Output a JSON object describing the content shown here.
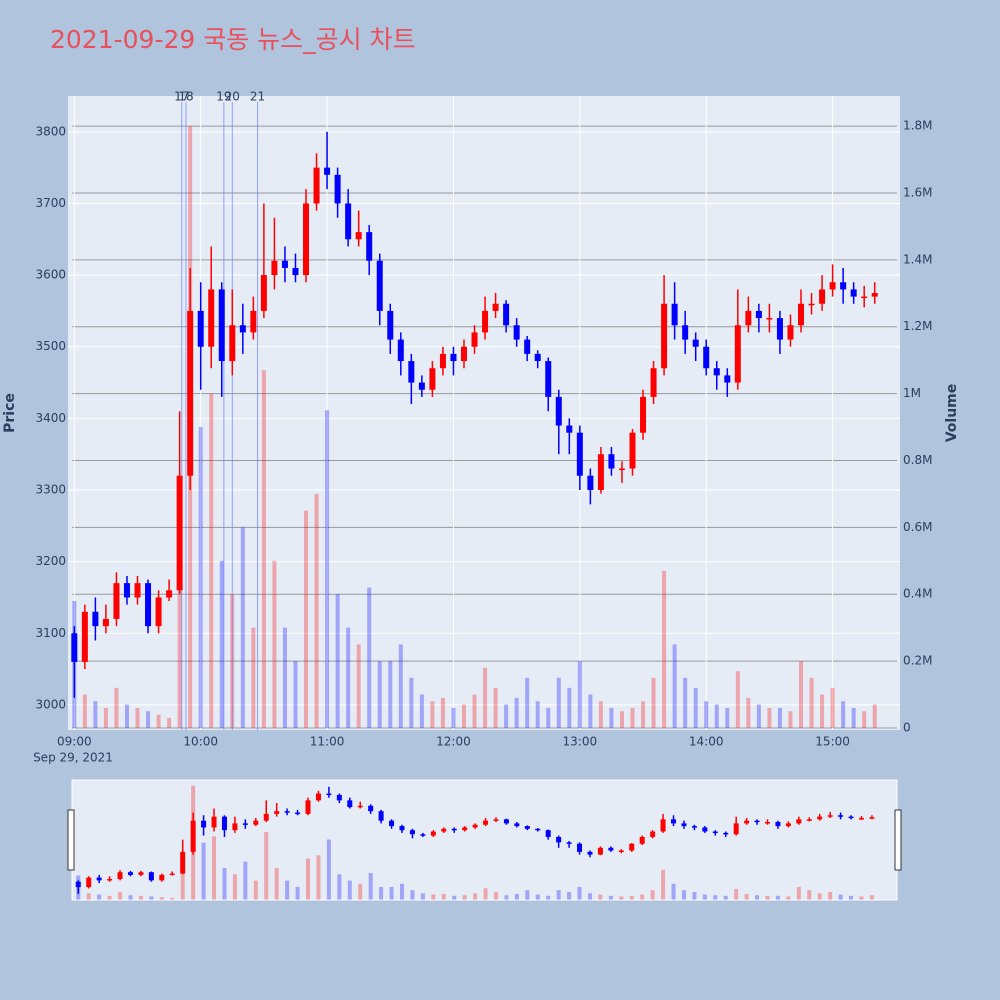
{
  "chart_data": {
    "type": "candlestick",
    "title": "2021-09-29 국동 뉴스_공시 차트",
    "ylabel": "Price",
    "y2label": "Volume",
    "x": [
      "09:00",
      "09:05",
      "09:10",
      "09:15",
      "09:20",
      "09:25",
      "09:30",
      "09:35",
      "09:40",
      "09:45",
      "09:50",
      "09:55",
      "10:00",
      "10:05",
      "10:10",
      "10:15",
      "10:20",
      "10:25",
      "10:30",
      "10:35",
      "10:40",
      "10:45",
      "10:50",
      "10:55",
      "11:00",
      "11:05",
      "11:10",
      "11:15",
      "11:20",
      "11:25",
      "11:30",
      "11:35",
      "11:40",
      "11:45",
      "11:50",
      "11:55",
      "12:00",
      "12:05",
      "12:10",
      "12:15",
      "12:20",
      "12:25",
      "12:30",
      "12:35",
      "12:40",
      "12:45",
      "12:50",
      "12:55",
      "13:00",
      "13:05",
      "13:10",
      "13:15",
      "13:20",
      "13:25",
      "13:30",
      "13:35",
      "13:40",
      "13:45",
      "13:50",
      "13:55",
      "14:00",
      "14:05",
      "14:10",
      "14:15",
      "14:20",
      "14:25",
      "14:30",
      "14:35",
      "14:40",
      "14:45",
      "14:50",
      "14:55",
      "15:00",
      "15:05",
      "15:10",
      "15:15",
      "15:20"
    ],
    "open": [
      3100,
      3060,
      3130,
      3110,
      3120,
      3170,
      3150,
      3170,
      3110,
      3150,
      3160,
      3320,
      3550,
      3500,
      3580,
      3480,
      3530,
      3520,
      3550,
      3600,
      3620,
      3610,
      3600,
      3700,
      3750,
      3740,
      3700,
      3650,
      3660,
      3620,
      3550,
      3510,
      3480,
      3450,
      3440,
      3470,
      3490,
      3480,
      3500,
      3520,
      3550,
      3560,
      3530,
      3510,
      3490,
      3480,
      3430,
      3390,
      3380,
      3320,
      3300,
      3350,
      3330,
      3330,
      3380,
      3430,
      3470,
      3560,
      3530,
      3510,
      3500,
      3470,
      3460,
      3450,
      3530,
      3550,
      3540,
      3540,
      3510,
      3530,
      3560,
      3560,
      3580,
      3590,
      3580,
      3570,
      3570
    ],
    "high": [
      3110,
      3140,
      3150,
      3140,
      3185,
      3180,
      3180,
      3175,
      3160,
      3175,
      3410,
      3610,
      3590,
      3640,
      3590,
      3580,
      3560,
      3570,
      3700,
      3680,
      3640,
      3630,
      3720,
      3770,
      3800,
      3750,
      3720,
      3690,
      3670,
      3630,
      3560,
      3520,
      3490,
      3460,
      3480,
      3500,
      3500,
      3510,
      3530,
      3570,
      3575,
      3565,
      3540,
      3515,
      3495,
      3485,
      3440,
      3400,
      3390,
      3330,
      3360,
      3360,
      3340,
      3385,
      3440,
      3480,
      3600,
      3590,
      3550,
      3520,
      3510,
      3480,
      3470,
      3580,
      3570,
      3560,
      3560,
      3550,
      3545,
      3580,
      3575,
      3600,
      3615,
      3610,
      3590,
      3585,
      3590
    ],
    "low": [
      3010,
      3050,
      3090,
      3100,
      3110,
      3140,
      3140,
      3100,
      3100,
      3145,
      3155,
      3300,
      3440,
      3470,
      3430,
      3460,
      3490,
      3510,
      3540,
      3580,
      3590,
      3590,
      3590,
      3690,
      3720,
      3680,
      3640,
      3640,
      3600,
      3530,
      3490,
      3460,
      3420,
      3430,
      3430,
      3460,
      3460,
      3470,
      3490,
      3510,
      3540,
      3520,
      3500,
      3480,
      3470,
      3410,
      3350,
      3350,
      3300,
      3280,
      3295,
      3320,
      3310,
      3320,
      3370,
      3420,
      3460,
      3510,
      3490,
      3480,
      3460,
      3440,
      3430,
      3440,
      3520,
      3520,
      3520,
      3490,
      3500,
      3520,
      3545,
      3550,
      3570,
      3560,
      3560,
      3555,
      3560
    ],
    "close": [
      3060,
      3130,
      3110,
      3120,
      3170,
      3150,
      3170,
      3110,
      3150,
      3160,
      3320,
      3550,
      3500,
      3580,
      3480,
      3530,
      3520,
      3550,
      3600,
      3620,
      3610,
      3600,
      3700,
      3750,
      3740,
      3700,
      3650,
      3660,
      3620,
      3550,
      3510,
      3480,
      3450,
      3440,
      3470,
      3490,
      3480,
      3500,
      3520,
      3550,
      3560,
      3530,
      3510,
      3490,
      3480,
      3430,
      3390,
      3380,
      3320,
      3300,
      3350,
      3330,
      3330,
      3380,
      3430,
      3470,
      3560,
      3530,
      3510,
      3500,
      3470,
      3460,
      3450,
      3530,
      3550,
      3540,
      3540,
      3510,
      3530,
      3560,
      3560,
      3580,
      3590,
      3580,
      3570,
      3570,
      3575
    ],
    "volume": [
      380000,
      100000,
      80000,
      60000,
      120000,
      70000,
      60000,
      50000,
      40000,
      30000,
      700000,
      1800000,
      900000,
      1000000,
      500000,
      400000,
      600000,
      300000,
      1070000,
      500000,
      300000,
      200000,
      650000,
      700000,
      950000,
      400000,
      300000,
      250000,
      420000,
      200000,
      200000,
      250000,
      150000,
      100000,
      80000,
      90000,
      60000,
      70000,
      100000,
      180000,
      120000,
      70000,
      90000,
      150000,
      80000,
      60000,
      150000,
      120000,
      200000,
      100000,
      80000,
      60000,
      50000,
      60000,
      80000,
      150000,
      470000,
      250000,
      150000,
      120000,
      80000,
      70000,
      60000,
      170000,
      90000,
      70000,
      60000,
      60000,
      50000,
      200000,
      150000,
      100000,
      120000,
      80000,
      60000,
      50000,
      70000
    ],
    "increasing_color": "#ff0000",
    "decreasing_color": "#0000ff",
    "ylim": [
      2965,
      3850
    ],
    "yticks": [
      3000,
      3100,
      3200,
      3300,
      3400,
      3500,
      3600,
      3700,
      3800
    ],
    "y2lim": [
      -6000,
      1890000
    ],
    "y2ticks": [
      0,
      {
        "value": 200000,
        "label": "0.2M"
      },
      {
        "value": 400000,
        "label": "0.4M"
      },
      {
        "value": 600000,
        "label": "0.6M"
      },
      {
        "value": 800000,
        "label": "0.8M"
      },
      {
        "value": 1000000,
        "label": "1M"
      },
      {
        "value": 1200000,
        "label": "1.2M"
      },
      {
        "value": 1400000,
        "label": "1.4M"
      },
      {
        "value": 1600000,
        "label": "1.6M"
      },
      {
        "value": 1800000,
        "label": "1.8M"
      }
    ],
    "xlim": [
      "08:57",
      "15:32"
    ],
    "xticks": [
      "09:00",
      "10:00",
      "11:00",
      "12:00",
      "13:00",
      "14:00",
      "15:00"
    ],
    "x_date_label": "Sep 29, 2021",
    "annotations": [
      {
        "x": "09:51",
        "label": "17"
      },
      {
        "x": "09:53",
        "label": "18"
      },
      {
        "x": "10:11",
        "label": "19"
      },
      {
        "x": "10:15",
        "label": "20"
      },
      {
        "x": "10:27",
        "label": "21"
      }
    ],
    "grid": true,
    "rangeslider": true
  }
}
